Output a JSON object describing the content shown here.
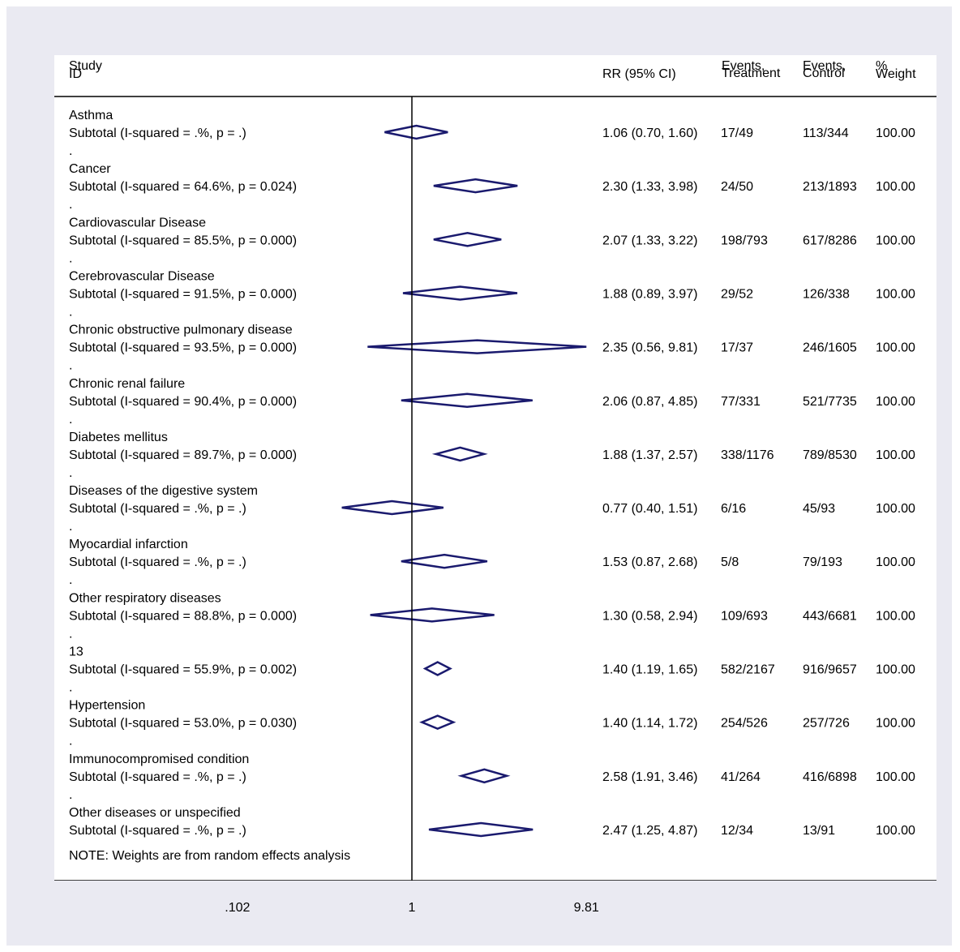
{
  "header": {
    "study_line1": "Study",
    "study_line2": "ID",
    "rr": "RR (95% CI)",
    "events_treatment_line1": "Events,",
    "events_treatment_line2": "Treatment",
    "events_control_line1": "Events,",
    "events_control_line2": "Control",
    "weight_line1": "%",
    "weight_line2": "Weight"
  },
  "note": "NOTE: Weights are from random effects analysis",
  "separator": ".",
  "chart_data": {
    "type": "forest",
    "scale": "log",
    "null_line": 1,
    "xlim": [
      0.102,
      9.81
    ],
    "xticks": [
      ".102",
      "1",
      "9.81"
    ],
    "subgroups": [
      {
        "name": "Asthma",
        "subtotal": "Subtotal  (I-squared = .%, p = .)",
        "rr": 1.06,
        "lo": 0.7,
        "hi": 1.6,
        "rr_text": "1.06 (0.70, 1.60)",
        "treatment": "17/49",
        "control": "113/344",
        "weight": "100.00"
      },
      {
        "name": "Cancer",
        "subtotal": "Subtotal  (I-squared = 64.6%, p = 0.024)",
        "rr": 2.3,
        "lo": 1.33,
        "hi": 3.98,
        "rr_text": "2.30 (1.33, 3.98)",
        "treatment": "24/50",
        "control": "213/1893",
        "weight": "100.00"
      },
      {
        "name": "Cardiovascular Disease",
        "subtotal": "Subtotal  (I-squared = 85.5%, p = 0.000)",
        "rr": 2.07,
        "lo": 1.33,
        "hi": 3.22,
        "rr_text": "2.07 (1.33, 3.22)",
        "treatment": "198/793",
        "control": "617/8286",
        "weight": "100.00"
      },
      {
        "name": "Cerebrovascular Disease",
        "subtotal": "Subtotal  (I-squared = 91.5%, p = 0.000)",
        "rr": 1.88,
        "lo": 0.89,
        "hi": 3.97,
        "rr_text": "1.88 (0.89, 3.97)",
        "treatment": "29/52",
        "control": "126/338",
        "weight": "100.00"
      },
      {
        "name": "Chronic obstructive pulmonary disease",
        "subtotal": "Subtotal  (I-squared = 93.5%, p = 0.000)",
        "rr": 2.35,
        "lo": 0.56,
        "hi": 9.81,
        "rr_text": "2.35 (0.56, 9.81)",
        "treatment": "17/37",
        "control": "246/1605",
        "weight": "100.00"
      },
      {
        "name": "Chronic renal failure",
        "subtotal": "Subtotal  (I-squared = 90.4%, p = 0.000)",
        "rr": 2.06,
        "lo": 0.87,
        "hi": 4.85,
        "rr_text": "2.06 (0.87, 4.85)",
        "treatment": "77/331",
        "control": "521/7735",
        "weight": "100.00"
      },
      {
        "name": "Diabetes mellitus",
        "subtotal": "Subtotal  (I-squared = 89.7%, p = 0.000)",
        "rr": 1.88,
        "lo": 1.37,
        "hi": 2.57,
        "rr_text": "1.88 (1.37, 2.57)",
        "treatment": "338/1176",
        "control": "789/8530",
        "weight": "100.00"
      },
      {
        "name": "Diseases of the digestive system",
        "subtotal": "Subtotal  (I-squared = .%, p = .)",
        "rr": 0.77,
        "lo": 0.4,
        "hi": 1.51,
        "rr_text": "0.77 (0.40, 1.51)",
        "treatment": "6/16",
        "control": "45/93",
        "weight": "100.00"
      },
      {
        "name": "Myocardial infarction",
        "subtotal": "Subtotal  (I-squared = .%, p = .)",
        "rr": 1.53,
        "lo": 0.87,
        "hi": 2.68,
        "rr_text": "1.53 (0.87, 2.68)",
        "treatment": "5/8",
        "control": "79/193",
        "weight": "100.00"
      },
      {
        "name": "Other respiratory diseases",
        "subtotal": "Subtotal  (I-squared = 88.8%, p = 0.000)",
        "rr": 1.3,
        "lo": 0.58,
        "hi": 2.94,
        "rr_text": "1.30 (0.58, 2.94)",
        "treatment": "109/693",
        "control": "443/6681",
        "weight": "100.00"
      },
      {
        "name": "13",
        "subtotal": "Subtotal  (I-squared = 55.9%, p = 0.002)",
        "rr": 1.4,
        "lo": 1.19,
        "hi": 1.65,
        "rr_text": "1.40 (1.19, 1.65)",
        "treatment": "582/2167",
        "control": "916/9657",
        "weight": "100.00"
      },
      {
        "name": "Hypertension",
        "subtotal": "Subtotal  (I-squared = 53.0%, p = 0.030)",
        "rr": 1.4,
        "lo": 1.14,
        "hi": 1.72,
        "rr_text": "1.40 (1.14, 1.72)",
        "treatment": "254/526",
        "control": "257/726",
        "weight": "100.00"
      },
      {
        "name": "Immunocompromised condition",
        "subtotal": "Subtotal  (I-squared = .%, p = .)",
        "rr": 2.58,
        "lo": 1.91,
        "hi": 3.46,
        "rr_text": "2.58 (1.91, 3.46)",
        "treatment": "41/264",
        "control": "416/6898",
        "weight": "100.00"
      },
      {
        "name": "Other diseases or unspecified",
        "subtotal": "Subtotal  (I-squared = .%, p = .)",
        "rr": 2.47,
        "lo": 1.25,
        "hi": 4.87,
        "rr_text": "2.47 (1.25, 4.87)",
        "treatment": "12/34",
        "control": "13/91",
        "weight": "100.00"
      }
    ],
    "colors": {
      "frame": "#eaeaf2",
      "panel": "#ffffff",
      "diamond": "#1a1a6e",
      "text": "#000000"
    }
  }
}
